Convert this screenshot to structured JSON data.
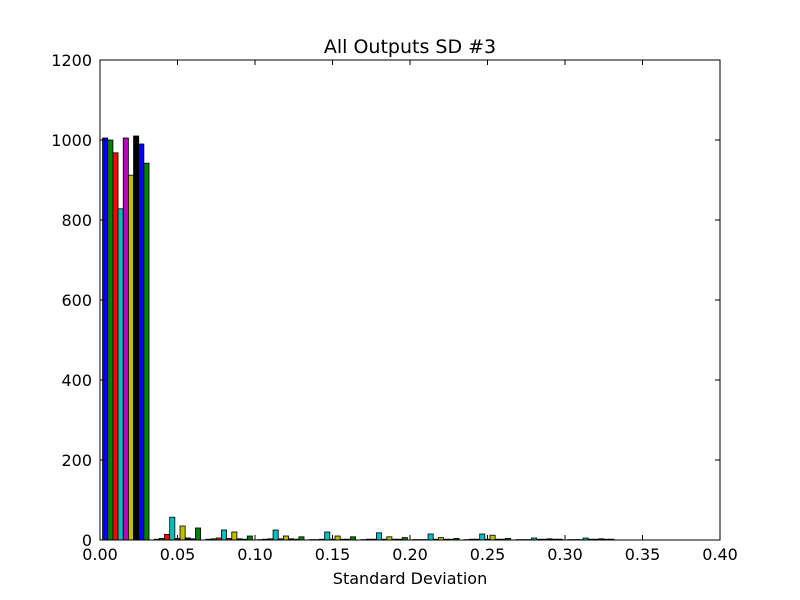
{
  "chart_data": {
    "type": "bar",
    "title": "All Outputs SD #3",
    "xlabel": "Standard Deviation",
    "ylabel": "",
    "xlim": [
      0.0,
      0.4
    ],
    "ylim": [
      0,
      1200
    ],
    "xticks": [
      "0.00",
      "0.05",
      "0.10",
      "0.15",
      "0.20",
      "0.25",
      "0.30",
      "0.35",
      "0.40"
    ],
    "yticks": [
      "0",
      "200",
      "400",
      "600",
      "800",
      "1000",
      "1200"
    ],
    "grid": false,
    "legend": "none",
    "bin_width": 0.0333,
    "bins": [
      0.0,
      0.0333,
      0.0667,
      0.1,
      0.1333,
      0.1667,
      0.2,
      0.2333,
      0.2667,
      0.3
    ],
    "series": [
      {
        "color": "#0000ff",
        "values": [
          1005,
          2,
          2,
          1,
          1,
          1,
          1,
          1,
          1,
          1
        ]
      },
      {
        "color": "#008000",
        "values": [
          1000,
          4,
          3,
          2,
          1,
          2,
          1,
          2,
          1,
          1
        ]
      },
      {
        "color": "#ff0000",
        "values": [
          968,
          14,
          5,
          3,
          2,
          2,
          1,
          2,
          1,
          1
        ]
      },
      {
        "color": "#00bfbf",
        "values": [
          828,
          57,
          25,
          25,
          20,
          18,
          15,
          15,
          5,
          5
        ]
      },
      {
        "color": "#bf00bf",
        "values": [
          1005,
          4,
          4,
          3,
          2,
          2,
          2,
          2,
          2,
          2
        ]
      },
      {
        "color": "#bfbf00",
        "values": [
          912,
          35,
          20,
          10,
          10,
          8,
          6,
          12,
          2,
          2
        ]
      },
      {
        "color": "#000000",
        "values": [
          1010,
          5,
          3,
          3,
          2,
          2,
          2,
          2,
          3,
          3
        ]
      },
      {
        "color": "#0000ff",
        "values": [
          990,
          3,
          2,
          2,
          2,
          2,
          2,
          2,
          2,
          2
        ]
      },
      {
        "color": "#008000",
        "values": [
          942,
          30,
          10,
          8,
          8,
          6,
          4,
          4,
          2,
          2
        ]
      }
    ]
  }
}
